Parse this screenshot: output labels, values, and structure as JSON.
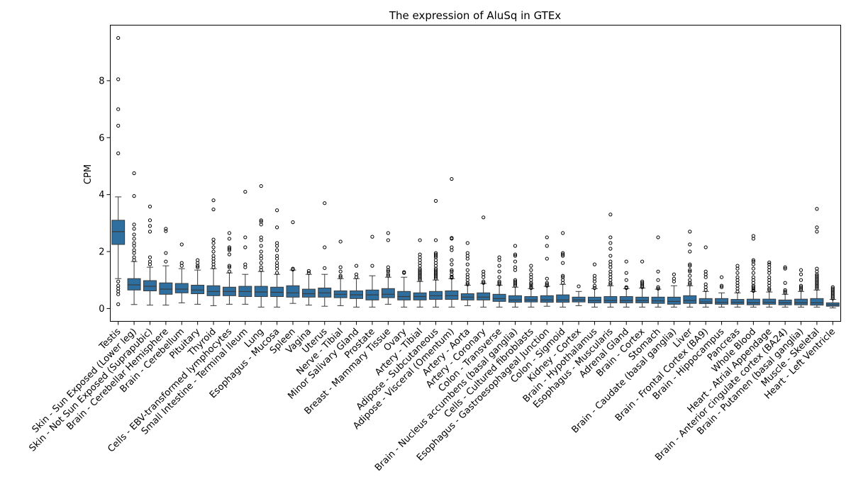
{
  "chart_data": {
    "type": "box",
    "title": "The expression of AluSq in GTEx",
    "xlabel": "",
    "ylabel": "CPM",
    "ylim": [
      -0.45,
      9.95
    ],
    "yticks": [
      0,
      2,
      4,
      6,
      8
    ],
    "box_color": "#2f6fa0",
    "grid": false,
    "categories": [
      "Testis",
      "Skin - Sun Exposed (Lower leg)",
      "Skin - Not Sun Exposed (Suprapubic)",
      "Brain - Cerebellar Hemisphere",
      "Brain - Cerebellum",
      "Pituitary",
      "Thyroid",
      "Cells - EBV-transformed lymphocytes",
      "Small Intestine - Terminal Ileum",
      "Lung",
      "Esophagus - Mucosa",
      "Spleen",
      "Vagina",
      "Uterus",
      "Nerve - Tibial",
      "Minor Salivary Gland",
      "Prostate",
      "Breast - Mammary Tissue",
      "Ovary",
      "Artery - Tibial",
      "Adipose - Subcutaneous",
      "Adipose - Visceral (Omentum)",
      "Artery - Aorta",
      "Artery - Coronary",
      "Colon - Transverse",
      "Brain - Nucleus accumbens (basal ganglia)",
      "Cells - Cultured fibroblasts",
      "Esophagus - Gastroesophageal Junction",
      "Colon - Sigmoid",
      "Kidney - Cortex",
      "Brain - Hypothalamus",
      "Esophagus - Muscularis",
      "Adrenal Gland",
      "Brain - Cortex",
      "Stomach",
      "Brain - Caudate (basal ganglia)",
      "Liver",
      "Brain - Frontal Cortex (BA9)",
      "Brain - Hippocampus",
      "Pancreas",
      "Whole Blood",
      "Heart - Atrial Appendage",
      "Brain - Anterior cingulate cortex (BA24)",
      "Brain - Putamen (basal ganglia)",
      "Muscle - Skeletal",
      "Heart - Left Ventricle"
    ],
    "boxes": [
      {
        "whislo": 1.05,
        "q1": 2.25,
        "med": 2.7,
        "q3": 3.1,
        "whishi": 3.92,
        "fliers": [
          0.15,
          0.5,
          0.6,
          0.7,
          0.8,
          0.95,
          5.45,
          6.42,
          7.0,
          8.05,
          9.5
        ]
      },
      {
        "whislo": 0.14,
        "q1": 0.65,
        "med": 0.83,
        "q3": 1.05,
        "whishi": 1.65,
        "fliers": [
          1.7,
          1.8,
          1.95,
          2.05,
          2.2,
          2.3,
          2.45,
          2.6,
          2.8,
          2.95,
          3.95,
          4.75
        ]
      },
      {
        "whislo": 0.12,
        "q1": 0.62,
        "med": 0.78,
        "q3": 0.98,
        "whishi": 1.45,
        "fliers": [
          1.55,
          1.65,
          1.8,
          2.7,
          2.9,
          3.1,
          3.58
        ]
      },
      {
        "whislo": 0.12,
        "q1": 0.5,
        "med": 0.68,
        "q3": 0.9,
        "whishi": 1.5,
        "fliers": [
          1.65,
          1.95,
          2.72,
          2.8
        ]
      },
      {
        "whislo": 0.2,
        "q1": 0.55,
        "med": 0.68,
        "q3": 0.88,
        "whishi": 1.4,
        "fliers": [
          1.5,
          1.6,
          2.25
        ]
      },
      {
        "whislo": 0.15,
        "q1": 0.52,
        "med": 0.65,
        "q3": 0.82,
        "whishi": 1.35,
        "fliers": [
          1.45,
          1.5,
          1.6,
          1.7
        ]
      },
      {
        "whislo": 0.1,
        "q1": 0.45,
        "med": 0.6,
        "q3": 0.8,
        "whishi": 1.4,
        "fliers": [
          1.45,
          1.55,
          1.65,
          1.75,
          1.85,
          2.0,
          2.15,
          2.3,
          2.42,
          3.48,
          3.8
        ]
      },
      {
        "whislo": 0.15,
        "q1": 0.45,
        "med": 0.6,
        "q3": 0.75,
        "whishi": 1.25,
        "fliers": [
          1.3,
          1.45,
          1.5,
          1.9,
          2.05,
          2.1,
          2.15,
          2.45,
          2.65
        ]
      },
      {
        "whislo": 0.15,
        "q1": 0.42,
        "med": 0.6,
        "q3": 0.78,
        "whishi": 1.2,
        "fliers": [
          1.45,
          1.55,
          2.15,
          2.5,
          4.1
        ]
      },
      {
        "whislo": 0.05,
        "q1": 0.42,
        "med": 0.58,
        "q3": 0.78,
        "whishi": 1.3,
        "fliers": [
          1.35,
          1.45,
          1.6,
          1.75,
          1.85,
          2.0,
          2.2,
          2.4,
          2.5,
          2.95,
          3.05,
          3.1,
          4.3
        ]
      },
      {
        "whislo": 0.05,
        "q1": 0.42,
        "med": 0.57,
        "q3": 0.75,
        "whishi": 1.2,
        "fliers": [
          1.25,
          1.4,
          1.5,
          1.6,
          1.75,
          1.85,
          2.05,
          2.2,
          2.3,
          2.85,
          3.45
        ]
      },
      {
        "whislo": 0.18,
        "q1": 0.4,
        "med": 0.55,
        "q3": 0.8,
        "whishi": 1.35,
        "fliers": [
          1.37,
          1.4,
          3.03
        ]
      },
      {
        "whislo": 0.12,
        "q1": 0.4,
        "med": 0.52,
        "q3": 0.68,
        "whishi": 1.2,
        "fliers": [
          1.25,
          1.32
        ]
      },
      {
        "whislo": 0.08,
        "q1": 0.4,
        "med": 0.55,
        "q3": 0.72,
        "whishi": 1.2,
        "fliers": [
          1.42,
          2.15,
          3.7
        ]
      },
      {
        "whislo": 0.1,
        "q1": 0.38,
        "med": 0.5,
        "q3": 0.62,
        "whishi": 1.05,
        "fliers": [
          1.1,
          1.15,
          1.3,
          1.45,
          2.35
        ]
      },
      {
        "whislo": 0.05,
        "q1": 0.35,
        "med": 0.48,
        "q3": 0.62,
        "whishi": 1.05,
        "fliers": [
          1.1,
          1.2,
          1.5
        ]
      },
      {
        "whislo": 0.05,
        "q1": 0.3,
        "med": 0.48,
        "q3": 0.65,
        "whishi": 1.15,
        "fliers": [
          1.5,
          2.52
        ]
      },
      {
        "whislo": 0.15,
        "q1": 0.38,
        "med": 0.5,
        "q3": 0.7,
        "whishi": 1.1,
        "fliers": [
          1.15,
          1.2,
          1.3,
          1.35,
          1.45,
          2.4,
          2.65
        ]
      },
      {
        "whislo": 0.05,
        "q1": 0.3,
        "med": 0.42,
        "q3": 0.6,
        "whishi": 1.1,
        "fliers": [
          1.25,
          1.28
        ]
      },
      {
        "whislo": 0.05,
        "q1": 0.3,
        "med": 0.42,
        "q3": 0.55,
        "whishi": 0.95,
        "fliers": [
          1.0,
          1.05,
          1.1,
          1.15,
          1.2,
          1.25,
          1.3,
          1.35,
          1.4,
          1.5,
          1.6,
          1.7,
          1.8,
          1.9,
          2.4
        ]
      },
      {
        "whislo": 0.05,
        "q1": 0.32,
        "med": 0.45,
        "q3": 0.6,
        "whishi": 1.0,
        "fliers": [
          1.05,
          1.1,
          1.15,
          1.2,
          1.25,
          1.3,
          1.35,
          1.4,
          1.5,
          1.6,
          1.7,
          1.8,
          1.85,
          1.9,
          1.95,
          2.4,
          3.78
        ]
      },
      {
        "whislo": 0.05,
        "q1": 0.32,
        "med": 0.45,
        "q3": 0.62,
        "whishi": 1.05,
        "fliers": [
          1.08,
          1.12,
          1.2,
          1.3,
          1.35,
          1.55,
          1.7,
          2.05,
          2.15,
          2.45,
          2.48,
          4.55
        ]
      },
      {
        "whislo": 0.1,
        "q1": 0.3,
        "med": 0.4,
        "q3": 0.52,
        "whishi": 0.82,
        "fliers": [
          0.85,
          0.9,
          1.0,
          1.1,
          1.2,
          1.35,
          1.55,
          1.75,
          1.85,
          1.95,
          2.3
        ]
      },
      {
        "whislo": 0.05,
        "q1": 0.3,
        "med": 0.4,
        "q3": 0.55,
        "whishi": 0.88,
        "fliers": [
          0.9,
          0.95,
          1.1,
          1.2,
          1.3,
          3.2
        ]
      },
      {
        "whislo": 0.05,
        "q1": 0.25,
        "med": 0.35,
        "q3": 0.5,
        "whishi": 0.82,
        "fliers": [
          0.85,
          0.9,
          0.95,
          1.1,
          1.3,
          1.5,
          1.7,
          1.8
        ]
      },
      {
        "whislo": 0.05,
        "q1": 0.22,
        "med": 0.3,
        "q3": 0.45,
        "whishi": 0.75,
        "fliers": [
          0.8,
          0.85,
          0.9,
          0.95,
          1.0,
          1.35,
          1.45,
          1.65,
          1.85,
          1.9,
          2.2
        ]
      },
      {
        "whislo": 0.05,
        "q1": 0.23,
        "med": 0.3,
        "q3": 0.42,
        "whishi": 0.7,
        "fliers": [
          0.72,
          0.78,
          0.85,
          0.9,
          1.0,
          1.1,
          1.2,
          1.35,
          1.5
        ]
      },
      {
        "whislo": 0.08,
        "q1": 0.22,
        "med": 0.3,
        "q3": 0.45,
        "whishi": 0.78,
        "fliers": [
          0.8,
          0.85,
          0.9,
          1.05,
          1.75,
          2.2,
          2.5
        ]
      },
      {
        "whislo": 0.05,
        "q1": 0.22,
        "med": 0.3,
        "q3": 0.48,
        "whishi": 0.85,
        "fliers": [
          0.9,
          1.0,
          1.1,
          1.15,
          1.6,
          1.85,
          1.9,
          1.95,
          2.65
        ]
      },
      {
        "whislo": 0.1,
        "q1": 0.23,
        "med": 0.3,
        "q3": 0.4,
        "whishi": 0.6,
        "fliers": [
          0.78
        ]
      },
      {
        "whislo": 0.05,
        "q1": 0.2,
        "med": 0.28,
        "q3": 0.4,
        "whishi": 0.7,
        "fliers": [
          0.72,
          0.8,
          0.95,
          1.05,
          1.15,
          1.55
        ]
      },
      {
        "whislo": 0.05,
        "q1": 0.2,
        "med": 0.28,
        "q3": 0.42,
        "whishi": 0.8,
        "fliers": [
          0.85,
          0.9,
          1.0,
          1.1,
          1.2,
          1.3,
          1.45,
          1.55,
          1.65,
          1.85,
          2.1,
          2.3,
          2.5,
          3.3
        ]
      },
      {
        "whislo": 0.05,
        "q1": 0.2,
        "med": 0.28,
        "q3": 0.42,
        "whishi": 0.7,
        "fliers": [
          0.72,
          0.75,
          1.0,
          1.25,
          1.65
        ]
      },
      {
        "whislo": 0.05,
        "q1": 0.2,
        "med": 0.28,
        "q3": 0.4,
        "whishi": 0.72,
        "fliers": [
          0.75,
          0.8,
          0.85,
          0.9,
          0.95,
          1.65
        ]
      },
      {
        "whislo": 0.05,
        "q1": 0.18,
        "med": 0.27,
        "q3": 0.4,
        "whishi": 0.68,
        "fliers": [
          0.7,
          0.75,
          1.0,
          1.3,
          2.5
        ]
      },
      {
        "whislo": 0.05,
        "q1": 0.15,
        "med": 0.25,
        "q3": 0.4,
        "whishi": 0.8,
        "fliers": [
          0.95,
          1.05,
          1.2
        ]
      },
      {
        "whislo": 0.05,
        "q1": 0.18,
        "med": 0.28,
        "q3": 0.45,
        "whishi": 0.8,
        "fliers": [
          0.85,
          0.9,
          1.0,
          1.15,
          1.3,
          1.35,
          1.5,
          1.55,
          2.0,
          2.25,
          2.7
        ]
      },
      {
        "whislo": 0.05,
        "q1": 0.17,
        "med": 0.23,
        "q3": 0.35,
        "whishi": 0.6,
        "fliers": [
          0.65,
          0.75,
          0.85,
          1.1,
          1.2,
          1.3,
          2.15
        ]
      },
      {
        "whislo": 0.05,
        "q1": 0.15,
        "med": 0.22,
        "q3": 0.35,
        "whishi": 0.55,
        "fliers": [
          0.75,
          0.8,
          1.1
        ]
      },
      {
        "whislo": 0.05,
        "q1": 0.15,
        "med": 0.22,
        "q3": 0.32,
        "whishi": 0.55,
        "fliers": [
          0.6,
          0.7,
          0.8,
          0.9,
          1.0,
          1.1,
          1.25,
          1.4,
          1.5
        ]
      },
      {
        "whislo": 0.05,
        "q1": 0.13,
        "med": 0.2,
        "q3": 0.33,
        "whishi": 0.6,
        "fliers": [
          0.62,
          0.65,
          0.7,
          0.75,
          0.8,
          0.9,
          1.0,
          1.1,
          1.25,
          1.4,
          1.55,
          1.65,
          1.7,
          2.45,
          2.55
        ]
      },
      {
        "whislo": 0.05,
        "q1": 0.15,
        "med": 0.22,
        "q3": 0.33,
        "whishi": 0.58,
        "fliers": [
          0.65,
          0.7,
          0.8,
          0.9,
          1.0,
          1.1,
          1.25,
          1.35,
          1.45,
          1.55,
          1.62
        ]
      },
      {
        "whislo": 0.05,
        "q1": 0.13,
        "med": 0.2,
        "q3": 0.3,
        "whishi": 0.5,
        "fliers": [
          0.55,
          0.6,
          0.65,
          0.9,
          1.4,
          1.45
        ]
      },
      {
        "whislo": 0.05,
        "q1": 0.13,
        "med": 0.2,
        "q3": 0.33,
        "whishi": 0.6,
        "fliers": [
          0.65,
          0.7,
          0.75,
          0.8,
          1.0,
          1.2,
          1.35
        ]
      },
      {
        "whislo": 0.05,
        "q1": 0.12,
        "med": 0.2,
        "q3": 0.35,
        "whishi": 0.65,
        "fliers": [
          0.7,
          0.75,
          0.8,
          0.85,
          0.9,
          0.95,
          1.0,
          1.05,
          1.1,
          1.15,
          1.2,
          1.3,
          1.4,
          2.7,
          2.85,
          3.5
        ]
      },
      {
        "whislo": 0.02,
        "q1": 0.08,
        "med": 0.13,
        "q3": 0.2,
        "whishi": 0.32,
        "fliers": [
          0.35,
          0.4,
          0.45,
          0.5,
          0.55,
          0.6,
          0.65,
          0.7,
          0.75
        ]
      }
    ]
  }
}
